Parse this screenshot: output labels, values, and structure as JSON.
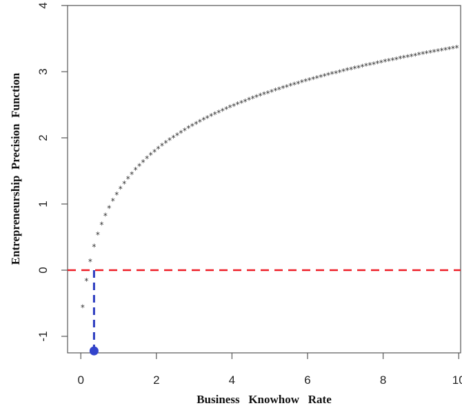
{
  "chart_data": {
    "type": "scatter",
    "title": "",
    "xlabel": "Business   Knowhow   Rate",
    "ylabel": "Entrepreneurship  Precision  Function",
    "xlim": [
      -0.35,
      10.05
    ],
    "ylim": [
      -1.25,
      4.0
    ],
    "x_ticks": [
      0,
      2,
      4,
      6,
      8,
      10
    ],
    "x_tick_labels": [
      "0",
      "2",
      "4",
      "6",
      "8",
      "10"
    ],
    "y_ticks": [
      -1,
      0,
      1,
      2,
      3,
      4
    ],
    "y_tick_labels": [
      "-1",
      "0",
      "1",
      "2",
      "3",
      "4"
    ],
    "marker": "*",
    "marker_color": "#333333",
    "curve": {
      "x_start": -0.05,
      "x_end": 10.0,
      "x_step": 0.1,
      "y_at_x_one": 1.05,
      "log_coefficient": 1.0
    },
    "horizontal_reference": {
      "y": 0,
      "color": "#ee1c25",
      "style": "dashed"
    },
    "vertical_reference": {
      "x": 0.35,
      "y_from": -1.22,
      "y_to": 0,
      "color": "#2b3bbf",
      "style": "dashed"
    },
    "highlight_point": {
      "x": 0.35,
      "y": -1.22,
      "color": "#3344cc"
    },
    "grid": false,
    "legend": "none"
  }
}
